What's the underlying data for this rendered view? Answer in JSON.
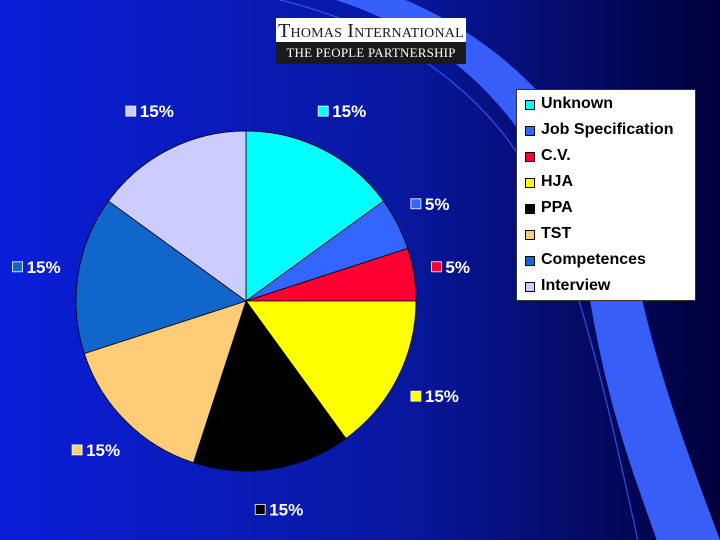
{
  "logo": {
    "line1": "Thomas International",
    "line2": "THE PEOPLE PARTNERSHIP"
  },
  "colors": {
    "background_from": "#0a1ed8",
    "background_to": "#00003a",
    "swoosh": "#3a63ff"
  },
  "chart_data": {
    "type": "pie",
    "title": "",
    "legend_position": "right",
    "series": [
      {
        "name": "Unknown",
        "value": 15,
        "label": "15%",
        "color": "#00ffff"
      },
      {
        "name": "Job Specification",
        "value": 5,
        "label": "5%",
        "color": "#3366ff"
      },
      {
        "name": "C.V.",
        "value": 5,
        "label": "5%",
        "color": "#ff0033"
      },
      {
        "name": "HJA",
        "value": 15,
        "label": "15%",
        "color": "#ffff00"
      },
      {
        "name": "PPA",
        "value": 15,
        "label": "15%",
        "color": "#000000"
      },
      {
        "name": "TST",
        "value": 15,
        "label": "15%",
        "color": "#ffcc77"
      },
      {
        "name": "Competences",
        "value": 15,
        "label": "15%",
        "color": "#1166cc"
      },
      {
        "name": "Interview",
        "value": 15,
        "label": "15%",
        "color": "#ccccff"
      }
    ]
  }
}
